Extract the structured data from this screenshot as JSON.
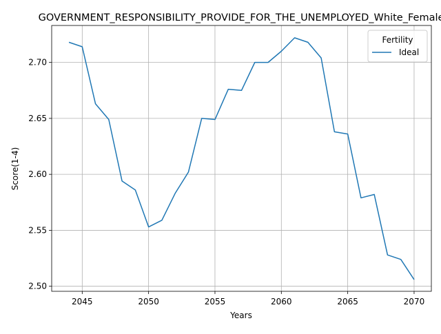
{
  "chart_data": {
    "type": "line",
    "title": "GOVERNMENT_RESPONSIBILITY_PROVIDE_FOR_THE_UNEMPLOYED_White_Female",
    "xlabel": "Years",
    "ylabel": "Score(1-4)",
    "xlim": [
      2042.7,
      2071.3
    ],
    "ylim": [
      2.4955,
      2.733
    ],
    "x_ticks": [
      2045,
      2050,
      2055,
      2060,
      2065,
      2070
    ],
    "y_ticks": [
      2.5,
      2.55,
      2.6,
      2.65,
      2.7
    ],
    "y_tick_labels": [
      "2.50",
      "2.55",
      "2.60",
      "2.65",
      "2.70"
    ],
    "grid": true,
    "legend": {
      "title": "Fertility",
      "placement": "top-right"
    },
    "series": [
      {
        "name": "Ideal",
        "color": "#1f77b4",
        "x": [
          2044,
          2045,
          2046,
          2047,
          2048,
          2049,
          2050,
          2051,
          2052,
          2053,
          2054,
          2055,
          2056,
          2057,
          2058,
          2059,
          2060,
          2061,
          2062,
          2063,
          2064,
          2065,
          2066,
          2067,
          2068,
          2069,
          2070
        ],
        "values": [
          2.718,
          2.714,
          2.663,
          2.649,
          2.594,
          2.586,
          2.553,
          2.559,
          2.583,
          2.602,
          2.65,
          2.649,
          2.676,
          2.675,
          2.7,
          2.7,
          2.71,
          2.722,
          2.718,
          2.704,
          2.638,
          2.636,
          2.579,
          2.582,
          2.528,
          2.524,
          2.506
        ]
      }
    ]
  }
}
